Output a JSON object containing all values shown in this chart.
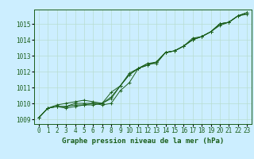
{
  "title": "Graphe pression niveau de la mer (hPa)",
  "bg_color": "#cceeff",
  "grid_color": "#b8ddd0",
  "line_color": "#1a5e1a",
  "x_labels": [
    "0",
    "1",
    "2",
    "3",
    "4",
    "5",
    "6",
    "7",
    "8",
    "9",
    "10",
    "11",
    "12",
    "13",
    "14",
    "15",
    "16",
    "17",
    "18",
    "19",
    "20",
    "21",
    "22",
    "23"
  ],
  "ylim": [
    1008.7,
    1015.9
  ],
  "yticks": [
    1009,
    1010,
    1011,
    1012,
    1013,
    1014,
    1015
  ],
  "series1": [
    1009.1,
    1009.7,
    1009.8,
    1009.8,
    1010.0,
    1010.0,
    1010.0,
    1009.9,
    1010.0,
    1010.8,
    1011.3,
    1012.2,
    1012.5,
    1012.5,
    1013.2,
    1013.3,
    1013.6,
    1014.1,
    1014.2,
    1014.5,
    1014.9,
    1015.1,
    1015.5,
    1015.6
  ],
  "series2": [
    1009.1,
    1009.7,
    1009.9,
    1010.0,
    1010.1,
    1010.2,
    1010.1,
    1010.0,
    1010.3,
    1011.1,
    1011.8,
    1012.2,
    1012.4,
    1012.6,
    1013.2,
    1013.3,
    1013.6,
    1014.0,
    1014.2,
    1014.5,
    1015.0,
    1015.1,
    1015.5,
    1015.7
  ],
  "series3": [
    1009.1,
    1009.7,
    1009.8,
    1009.8,
    1009.9,
    1009.9,
    1009.9,
    1010.0,
    1010.4,
    1011.1,
    1011.9,
    1012.2,
    1012.4,
    1012.6,
    1013.2,
    1013.3,
    1013.6,
    1014.0,
    1014.2,
    1014.5,
    1015.0,
    1015.1,
    1015.5,
    1015.7
  ],
  "series4": [
    1009.1,
    1009.7,
    1009.8,
    1009.7,
    1009.8,
    1009.9,
    1010.0,
    1010.0,
    1010.7,
    1011.1,
    1011.8,
    1012.2,
    1012.5,
    1012.6,
    1013.2,
    1013.3,
    1013.6,
    1014.0,
    1014.2,
    1014.5,
    1015.0,
    1015.1,
    1015.5,
    1015.7
  ],
  "title_fontsize": 6.5,
  "tick_fontsize": 5.5
}
